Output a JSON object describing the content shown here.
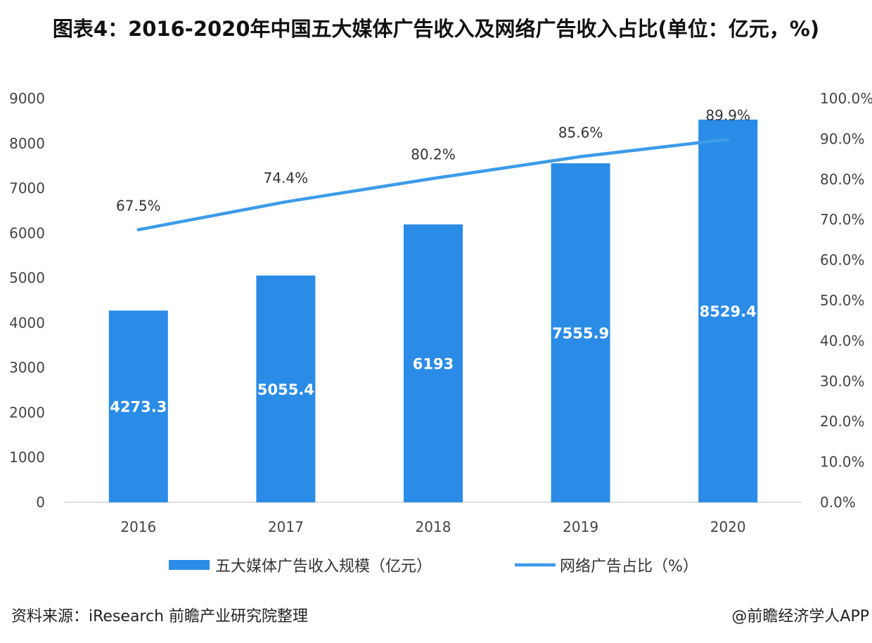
{
  "chart_data": {
    "type": "bar+line",
    "title": "图表4：2016-2020年中国五大媒体广告收入及网络广告收入占比(单位：亿元，%)",
    "categories": [
      "2016",
      "2017",
      "2018",
      "2019",
      "2020"
    ],
    "series": [
      {
        "name": "五大媒体广告收入规模（亿元）",
        "type": "bar",
        "axis": "left",
        "values": [
          4273.3,
          5055.4,
          6193,
          7555.9,
          8529.4
        ],
        "labels": [
          "4273.3",
          "5055.4",
          "6193",
          "7555.9",
          "8529.4"
        ],
        "color": "#2a8ce6"
      },
      {
        "name": "网络广告占比（%）",
        "type": "line",
        "axis": "right",
        "values": [
          67.5,
          74.4,
          80.2,
          85.6,
          89.9
        ],
        "labels": [
          "67.5%",
          "74.4%",
          "80.2%",
          "85.6%",
          "89.9%"
        ],
        "color": "#3d9be9"
      }
    ],
    "y_left": {
      "range": [
        0,
        9000
      ],
      "ticks": [
        "0",
        "1000",
        "2000",
        "3000",
        "4000",
        "5000",
        "6000",
        "7000",
        "8000",
        "9000"
      ]
    },
    "y_right": {
      "range": [
        0,
        100
      ],
      "ticks": [
        "0.0%",
        "10.0%",
        "20.0%",
        "30.0%",
        "40.0%",
        "50.0%",
        "60.0%",
        "70.0%",
        "80.0%",
        "90.0%",
        "100.0%"
      ]
    },
    "grid": false,
    "legend": "bottom"
  },
  "footer": {
    "source": "资料来源：iResearch 前瞻产业研究院整理",
    "credit": "@前瞻经济学人APP"
  }
}
